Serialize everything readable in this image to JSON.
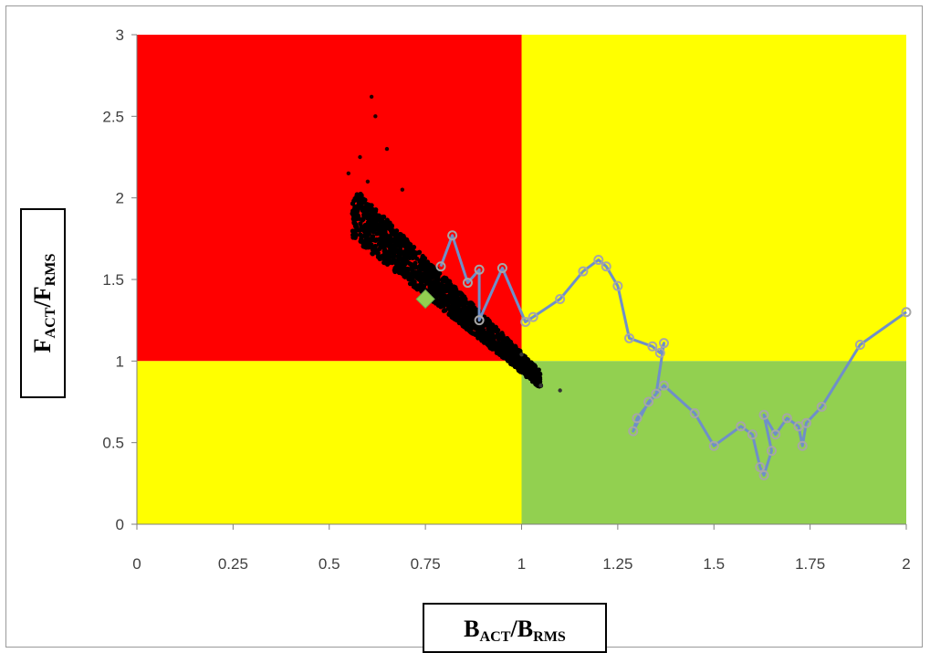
{
  "chart_data": {
    "type": "scatter",
    "xlabel": {
      "main1": "B",
      "sub1": "ACT",
      "mid": "/B",
      "sub2": "RMS"
    },
    "ylabel": {
      "main1": "F",
      "sub1": "ACT",
      "mid": "/F",
      "sub2": "RMS"
    },
    "xlim": [
      0,
      2
    ],
    "ylim": [
      0,
      3
    ],
    "xticks": [
      "0",
      "0.25",
      "0.5",
      "0.75",
      "1",
      "1.25",
      "1.5",
      "1.75",
      "2"
    ],
    "yticks": [
      "0",
      "0.5",
      "1",
      "1.5",
      "2",
      "2.5",
      "3"
    ],
    "regions": [
      {
        "x": [
          0,
          1
        ],
        "y": [
          1,
          3
        ],
        "color": "#ff0000"
      },
      {
        "x": [
          1,
          2
        ],
        "y": [
          1,
          3
        ],
        "color": "#ffff00"
      },
      {
        "x": [
          0,
          1
        ],
        "y": [
          0,
          1
        ],
        "color": "#ffff00"
      },
      {
        "x": [
          1,
          2
        ],
        "y": [
          0,
          1
        ],
        "color": "#92d050"
      }
    ],
    "cloud": {
      "color": "#000000",
      "trend": {
        "xmin": 0.56,
        "xmax": 1.05,
        "y_at_xmin": 1.9,
        "y_at_xmax": 0.88
      },
      "outliers": [
        [
          0.61,
          2.62
        ],
        [
          0.62,
          2.5
        ],
        [
          0.58,
          2.25
        ],
        [
          0.6,
          2.1
        ],
        [
          0.55,
          2.15
        ],
        [
          0.65,
          2.3
        ],
        [
          0.69,
          2.05
        ],
        [
          1.1,
          0.82
        ],
        [
          1.05,
          0.85
        ],
        [
          1.0,
          1.04
        ]
      ]
    },
    "highlight": {
      "x": 0.75,
      "y": 1.38,
      "color": "#92d050"
    },
    "series": [
      {
        "line_color": "#6f8fc8",
        "marker_color": "#a6a6a6",
        "points": [
          [
            0.79,
            1.58
          ],
          [
            0.82,
            1.77
          ],
          [
            0.86,
            1.48
          ],
          [
            0.89,
            1.56
          ],
          [
            0.89,
            1.25
          ],
          [
            0.95,
            1.57
          ],
          [
            1.01,
            1.24
          ],
          [
            1.03,
            1.27
          ],
          [
            1.1,
            1.38
          ],
          [
            1.16,
            1.55
          ],
          [
            1.2,
            1.62
          ],
          [
            1.22,
            1.58
          ],
          [
            1.25,
            1.46
          ],
          [
            1.28,
            1.14
          ],
          [
            1.34,
            1.09
          ],
          [
            1.36,
            1.05
          ],
          [
            1.37,
            1.11
          ],
          [
            1.35,
            0.8
          ],
          [
            1.3,
            0.65
          ],
          [
            1.29,
            0.57
          ],
          [
            1.33,
            0.75
          ],
          [
            1.37,
            0.85
          ],
          [
            1.45,
            0.68
          ],
          [
            1.5,
            0.48
          ],
          [
            1.57,
            0.6
          ],
          [
            1.6,
            0.55
          ],
          [
            1.62,
            0.35
          ],
          [
            1.63,
            0.3
          ],
          [
            1.65,
            0.45
          ],
          [
            1.63,
            0.67
          ],
          [
            1.66,
            0.55
          ],
          [
            1.69,
            0.65
          ],
          [
            1.72,
            0.6
          ],
          [
            1.73,
            0.48
          ],
          [
            1.74,
            0.62
          ],
          [
            1.78,
            0.72
          ],
          [
            1.88,
            1.1
          ],
          [
            2.0,
            1.3
          ]
        ]
      }
    ],
    "grid": false,
    "legend": "none"
  },
  "colors": {
    "frame": "#9a9a9a",
    "axis": "#7f7f7f"
  }
}
